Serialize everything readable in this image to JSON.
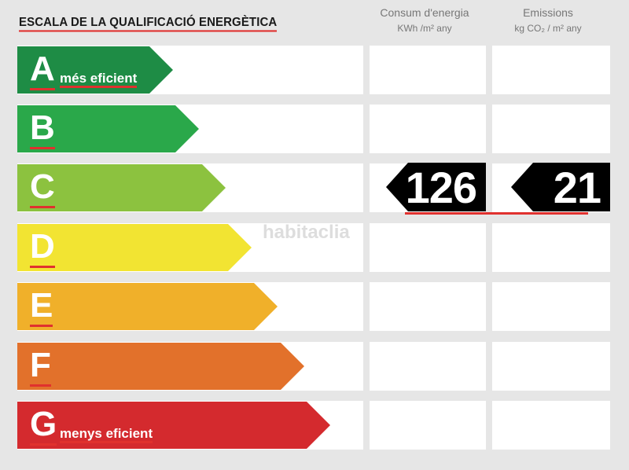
{
  "title": "ESCALA DE LA QUALIFICACIÓ ENERGÈTICA",
  "columns": {
    "consum": {
      "label": "Consum d'energia",
      "unit": "KWh /m² any"
    },
    "emissions": {
      "label": "Emissions",
      "unit": "kg CO₂ / m² any"
    }
  },
  "rows": [
    {
      "letter": "A",
      "label": "més eficient",
      "color": "#1e8c45"
    },
    {
      "letter": "B",
      "label": "",
      "color": "#2aa84a"
    },
    {
      "letter": "C",
      "label": "",
      "color": "#8cc23f"
    },
    {
      "letter": "D",
      "label": "",
      "color": "#f2e432"
    },
    {
      "letter": "E",
      "label": "",
      "color": "#f0b02a"
    },
    {
      "letter": "F",
      "label": "",
      "color": "#e2712b"
    },
    {
      "letter": "G",
      "label": "menys eficient",
      "color": "#d42a2e"
    }
  ],
  "rating": {
    "class": "C",
    "consum": "126",
    "emissions": "21"
  },
  "watermark": "habitaclia"
}
